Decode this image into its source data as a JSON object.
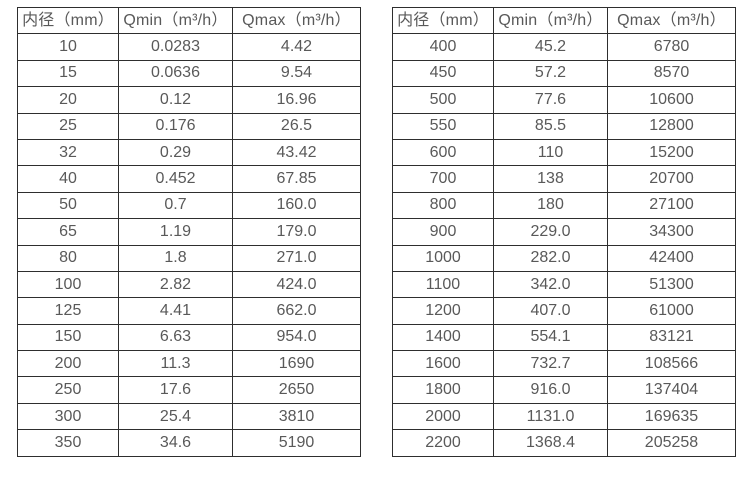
{
  "colors": {
    "text": "#595959",
    "border": "#2e2e2e",
    "background": "#ffffff"
  },
  "chart_data": [
    {
      "type": "table",
      "columns": [
        "内径（mm）",
        "Qmin（m³/h）",
        "Qmax（m³/h）"
      ],
      "rows": [
        [
          "10",
          "0.0283",
          "4.42"
        ],
        [
          "15",
          "0.0636",
          "9.54"
        ],
        [
          "20",
          "0.12",
          "16.96"
        ],
        [
          "25",
          "0.176",
          "26.5"
        ],
        [
          "32",
          "0.29",
          "43.42"
        ],
        [
          "40",
          "0.452",
          "67.85"
        ],
        [
          "50",
          "0.7",
          "160.0"
        ],
        [
          "65",
          "1.19",
          "179.0"
        ],
        [
          "80",
          "1.8",
          "271.0"
        ],
        [
          "100",
          "2.82",
          "424.0"
        ],
        [
          "125",
          "4.41",
          "662.0"
        ],
        [
          "150",
          "6.63",
          "954.0"
        ],
        [
          "200",
          "11.3",
          "1690"
        ],
        [
          "250",
          "17.6",
          "2650"
        ],
        [
          "300",
          "25.4",
          "3810"
        ],
        [
          "350",
          "34.6",
          "5190"
        ]
      ]
    },
    {
      "type": "table",
      "columns": [
        "内径（mm）",
        "Qmin（m³/h）",
        "Qmax（m³/h）"
      ],
      "rows": [
        [
          "400",
          "45.2",
          "6780"
        ],
        [
          "450",
          "57.2",
          "8570"
        ],
        [
          "500",
          "77.6",
          "10600"
        ],
        [
          "550",
          "85.5",
          "12800"
        ],
        [
          "600",
          "110",
          "15200"
        ],
        [
          "700",
          "138",
          "20700"
        ],
        [
          "800",
          "180",
          "27100"
        ],
        [
          "900",
          "229.0",
          "34300"
        ],
        [
          "1000",
          "282.0",
          "42400"
        ],
        [
          "1100",
          "342.0",
          "51300"
        ],
        [
          "1200",
          "407.0",
          "61000"
        ],
        [
          "1400",
          "554.1",
          "83121"
        ],
        [
          "1600",
          "732.7",
          "108566"
        ],
        [
          "1800",
          "916.0",
          "137404"
        ],
        [
          "2000",
          "1131.0",
          "169635"
        ],
        [
          "2200",
          "1368.4",
          "205258"
        ]
      ]
    }
  ]
}
